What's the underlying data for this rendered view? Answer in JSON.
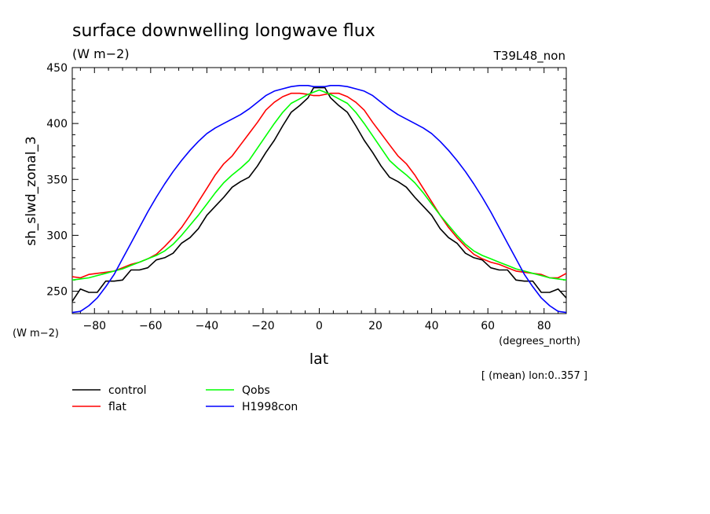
{
  "chart_data": {
    "type": "line",
    "title": "surface downwelling longwave flux",
    "title_units": "(W m−2)",
    "run_label": "T39L48_non",
    "ylabel": "sh_slwd_zonal_3",
    "yunits": "(W m−2)",
    "xlabel": "lat",
    "xunits": "(degrees_north)",
    "footnote": "[ (mean) lon:0..357 ]",
    "xlim": [
      -87.9,
      87.9
    ],
    "ylim": [
      230,
      450
    ],
    "xticks": [
      -80,
      -60,
      -40,
      -20,
      0,
      20,
      40,
      60,
      80
    ],
    "yticks": [
      250,
      300,
      350,
      400,
      450
    ],
    "xtick_labels": [
      "−80",
      "−60",
      "−40",
      "−20",
      "0",
      "20",
      "40",
      "60",
      "80"
    ],
    "ytick_labels": [
      "250",
      "300",
      "350",
      "400",
      "450"
    ],
    "grid": false,
    "legend_position": "bottom",
    "series": [
      {
        "name": "control",
        "color": "#000000",
        "x": [
          -87.9,
          -85,
          -82,
          -79,
          -76,
          -73,
          -70,
          -67,
          -64,
          -61,
          -58,
          -55,
          -52,
          -49,
          -46,
          -43,
          -40,
          -37,
          -34,
          -31,
          -28,
          -25,
          -22,
          -19,
          -16,
          -13,
          -10,
          -7,
          -4,
          -2,
          0,
          2,
          4,
          7,
          10,
          13,
          16,
          19,
          22,
          25,
          28,
          31,
          34,
          37,
          40,
          43,
          46,
          49,
          52,
          55,
          58,
          61,
          64,
          67,
          70,
          73,
          76,
          79,
          82,
          85,
          87.9
        ],
        "values": [
          241,
          252,
          249,
          249,
          259,
          259,
          260,
          269,
          269,
          271,
          278,
          280,
          284,
          293,
          298,
          306,
          318,
          326,
          334,
          343,
          348,
          352,
          362,
          374,
          385,
          398,
          410,
          416,
          423,
          432,
          432,
          432,
          423,
          416,
          410,
          398,
          385,
          374,
          362,
          352,
          348,
          343,
          334,
          326,
          318,
          306,
          298,
          293,
          284,
          280,
          278,
          271,
          269,
          269,
          260,
          259,
          259,
          249,
          249,
          252,
          244
        ]
      },
      {
        "name": "flat",
        "color": "#ff0000",
        "x": [
          -87.9,
          -85,
          -82,
          -79,
          -76,
          -73,
          -70,
          -67,
          -64,
          -61,
          -58,
          -55,
          -52,
          -49,
          -46,
          -43,
          -40,
          -37,
          -34,
          -31,
          -28,
          -25,
          -22,
          -19,
          -16,
          -13,
          -10,
          -7,
          -4,
          -2,
          0,
          2,
          4,
          7,
          10,
          13,
          16,
          19,
          22,
          25,
          28,
          31,
          34,
          37,
          40,
          43,
          46,
          49,
          52,
          55,
          58,
          61,
          64,
          67,
          70,
          73,
          76,
          79,
          82,
          85,
          87.9
        ],
        "values": [
          263,
          262,
          265,
          266,
          267,
          268,
          271,
          274,
          276,
          279,
          283,
          290,
          298,
          307,
          318,
          330,
          342,
          354,
          364,
          371,
          381,
          391,
          401,
          412,
          419,
          424,
          427,
          427,
          426,
          425,
          425,
          426,
          427,
          427,
          424,
          419,
          412,
          401,
          391,
          381,
          371,
          364,
          354,
          342,
          330,
          318,
          307,
          298,
          290,
          283,
          279,
          276,
          274,
          271,
          268,
          267,
          266,
          265,
          262,
          262,
          266
        ]
      },
      {
        "name": "Qobs",
        "color": "#00ff00",
        "x": [
          -87.9,
          -85,
          -82,
          -79,
          -76,
          -73,
          -70,
          -67,
          -64,
          -61,
          -58,
          -55,
          -52,
          -49,
          -46,
          -43,
          -40,
          -37,
          -34,
          -31,
          -28,
          -25,
          -22,
          -19,
          -16,
          -13,
          -10,
          -7,
          -4,
          -2,
          0,
          2,
          4,
          7,
          10,
          13,
          16,
          19,
          22,
          25,
          28,
          31,
          34,
          37,
          40,
          43,
          46,
          49,
          52,
          55,
          58,
          61,
          64,
          67,
          70,
          73,
          76,
          79,
          82,
          85,
          87.9
        ],
        "values": [
          260,
          261,
          262,
          264,
          266,
          268,
          270,
          273,
          276,
          279,
          282,
          286,
          292,
          300,
          309,
          318,
          328,
          338,
          347,
          354,
          360,
          367,
          378,
          389,
          400,
          410,
          418,
          422,
          426,
          428,
          430,
          428,
          426,
          422,
          418,
          410,
          400,
          389,
          378,
          367,
          360,
          354,
          347,
          338,
          328,
          318,
          309,
          300,
          292,
          286,
          282,
          279,
          276,
          273,
          270,
          268,
          266,
          264,
          262,
          261,
          260
        ]
      },
      {
        "name": "H1998con",
        "color": "#0000ff",
        "x": [
          -87.9,
          -85,
          -82,
          -79,
          -76,
          -73,
          -70,
          -67,
          -64,
          -61,
          -58,
          -55,
          -52,
          -49,
          -46,
          -43,
          -40,
          -37,
          -34,
          -31,
          -28,
          -25,
          -22,
          -19,
          -16,
          -13,
          -10,
          -7,
          -4,
          -2,
          0,
          2,
          4,
          7,
          10,
          13,
          16,
          19,
          22,
          25,
          28,
          31,
          34,
          37,
          40,
          43,
          46,
          49,
          52,
          55,
          58,
          61,
          64,
          67,
          70,
          73,
          76,
          79,
          82,
          85,
          87.9
        ],
        "values": [
          231,
          232,
          237,
          244,
          254,
          265,
          279,
          293,
          307,
          321,
          334,
          346,
          357,
          367,
          376,
          384,
          391,
          396,
          400,
          404,
          408,
          413,
          419,
          425,
          429,
          431,
          433,
          434,
          434,
          433,
          433,
          433,
          434,
          434,
          433,
          431,
          429,
          425,
          419,
          413,
          408,
          404,
          400,
          396,
          391,
          384,
          376,
          367,
          357,
          346,
          334,
          321,
          307,
          293,
          279,
          265,
          254,
          244,
          237,
          232,
          231
        ]
      }
    ]
  }
}
